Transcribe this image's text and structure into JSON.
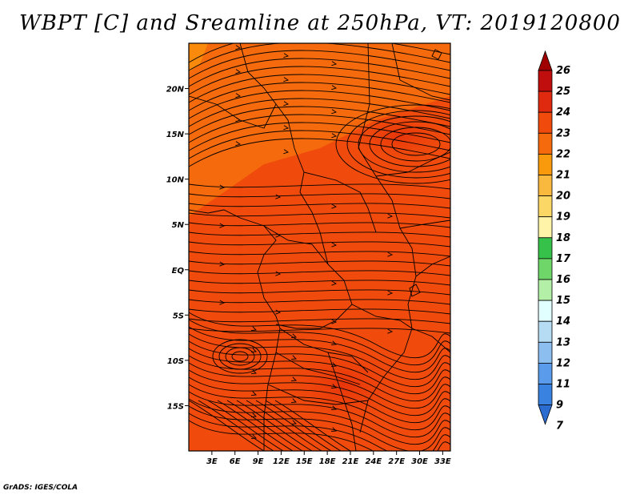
{
  "title": "WBPT [C] and Sreamline at 250hPa, VT: 2019120800",
  "credit": "GrADS: IGES/COLA",
  "map": {
    "lat_labels": [
      "20N",
      "15N",
      "10N",
      "5N",
      "EQ",
      "5S",
      "10S",
      "15S"
    ],
    "lat_values": [
      20,
      15,
      10,
      5,
      0,
      -5,
      -10,
      -15
    ],
    "lon_labels": [
      "3E",
      "6E",
      "9E",
      "12E",
      "15E",
      "18E",
      "21E",
      "24E",
      "27E",
      "30E",
      "33E"
    ],
    "lon_values": [
      3,
      6,
      9,
      12,
      15,
      18,
      21,
      24,
      27,
      30,
      33
    ],
    "lat_range": [
      -20,
      25
    ],
    "lon_range": [
      0,
      34
    ],
    "field": "WBPT",
    "units": "C",
    "level": "250hPa",
    "valid_time": "2019120800",
    "field_colors": {
      "main": "#f04b0c",
      "warm": "#f56a0c",
      "hot": "#e03a0a"
    }
  },
  "colorbar": {
    "labels": [
      "26",
      "25",
      "24",
      "23",
      "22",
      "21",
      "20",
      "19",
      "18",
      "17",
      "16",
      "15",
      "14",
      "13",
      "12",
      "11",
      "9",
      "7"
    ],
    "colors": [
      "#a00000",
      "#c00d0d",
      "#e02a10",
      "#f04b0c",
      "#f56a0c",
      "#f99a0c",
      "#f9b93e",
      "#fbd766",
      "#fff4a8",
      "#36c24a",
      "#6fd76a",
      "#b4efa8",
      "#e1ffff",
      "#b6dcf4",
      "#8cbfef",
      "#5a9ceb",
      "#3a82e0",
      "#2a6cd0"
    ]
  }
}
